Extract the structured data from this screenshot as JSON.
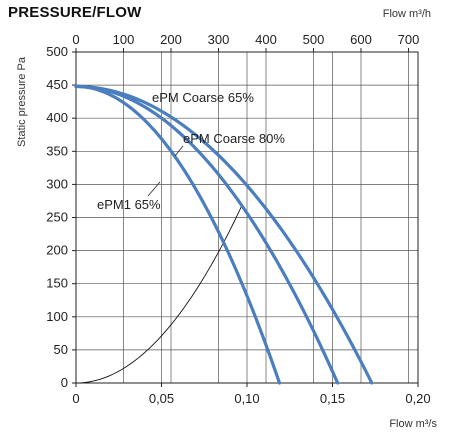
{
  "chart_data": {
    "type": "line",
    "title": "PRESSURE/FLOW",
    "ylabel": "Static pressure Pa",
    "xlabel": "Flow m³/s",
    "x2label": "Flow m³/h",
    "xlim": [
      0,
      0.2
    ],
    "ylim": [
      0,
      500
    ],
    "x2lim": [
      0,
      720
    ],
    "xticks": [
      0,
      0.05,
      0.1,
      0.15,
      0.2
    ],
    "xtick_labels": [
      "0",
      "0,05",
      "0,10",
      "0,15",
      "0,20"
    ],
    "x2ticks": [
      0,
      100,
      200,
      300,
      400,
      500,
      600,
      700
    ],
    "x2tick_labels": [
      "0",
      "100",
      "200",
      "300",
      "400",
      "500",
      "600",
      "700"
    ],
    "yticks": [
      0,
      50,
      100,
      150,
      200,
      250,
      300,
      350,
      400,
      450,
      500
    ],
    "ytick_labels": [
      "0",
      "50",
      "100",
      "150",
      "200",
      "250",
      "300",
      "350",
      "400",
      "450",
      "500"
    ],
    "grid": true,
    "series": [
      {
        "name": "ePM Coarse 65%",
        "color": "#4a7ebf",
        "x_max": 0.173,
        "y0": 448
      },
      {
        "name": "ePM Coarse 80%",
        "color": "#4a7ebf",
        "x_max": 0.153,
        "y0": 448
      },
      {
        "name": "ePM1 65%",
        "color": "#4a7ebf",
        "x_max": 0.119,
        "y0": 448
      }
    ],
    "system_curve": {
      "color": "#111111",
      "x": [
        0,
        0.02,
        0.04,
        0.06,
        0.08,
        0.097
      ],
      "y": [
        0,
        11,
        46,
        103,
        182,
        268
      ]
    }
  }
}
